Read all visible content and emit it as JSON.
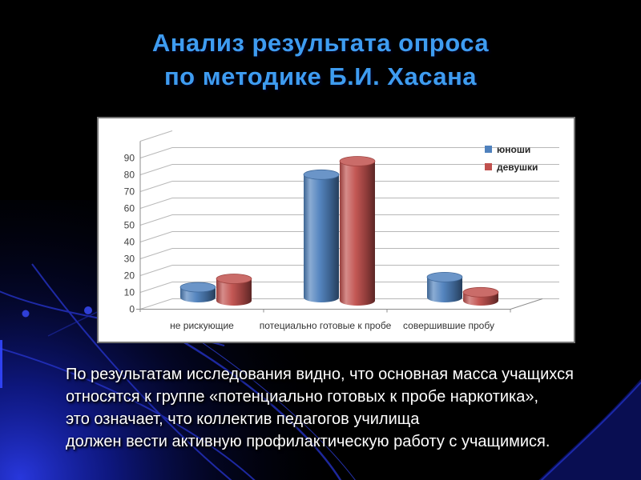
{
  "slide": {
    "title": {
      "line1": "Анализ результата опроса",
      "line2": "по методике Б.И. Хасана"
    },
    "paragraph": {
      "lines": [
        "По результатам исследования видно, что основная масса учащихся",
        "относятся к группе «потенциально готовых к пробе наркотика»,",
        "это означает, что коллектив педагогов училища",
        "должен вести активную профилактическую работу с учащимися."
      ]
    }
  },
  "colors": {
    "background": "#000000",
    "title_text": "#3e9cf0",
    "body_text": "#ffffff",
    "chart_bg": "#ffffff",
    "chart_border": "#747474",
    "gridline": "#b8b8b8",
    "axis_line": "#8c8c8c",
    "axis_label": "#404040",
    "legend_text": "#262626",
    "series_blue": "#4f81bd",
    "series_red": "#c0504d",
    "decor_glow": "#2433d8",
    "decor_line": "#2735cf"
  },
  "chart_data": {
    "type": "bar",
    "subtype": "3d-cylinder",
    "title": "",
    "xlabel": "",
    "ylabel": "",
    "categories": [
      "не рискующие",
      "потециально готовые к пробе",
      "совершившие пробу"
    ],
    "series": [
      {
        "name": "юноши",
        "color": "#4f81bd",
        "values": [
          10,
          77,
          16
        ]
      },
      {
        "name": "девушки",
        "color": "#c0504d",
        "values": [
          15,
          85,
          7
        ]
      }
    ],
    "ylim": [
      0,
      90
    ],
    "ytick_step": 10,
    "grid": true,
    "legend_position": "top-right"
  }
}
